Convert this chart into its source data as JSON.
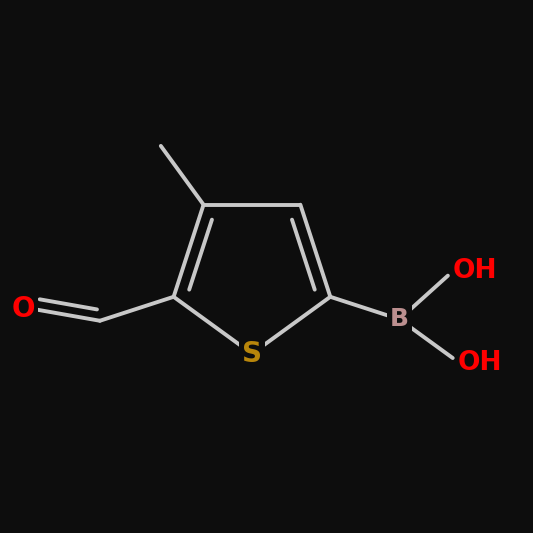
{
  "background_color": "#000000",
  "bond_color": "#000000",
  "fg_color": "#1a1a1a",
  "atom_colors": {
    "O": "#ff0000",
    "S": "#b8860b",
    "B": "#bc8f8f",
    "C": "#000000",
    "H": "#000000"
  },
  "line_color": "#ffffff",
  "bond_width": 3.0,
  "font_size_S": 22,
  "font_size_B": 20,
  "font_size_OH": 20,
  "font_size_O": 22,
  "font_size_CH3": 16,
  "bg": "#0d0d0d"
}
